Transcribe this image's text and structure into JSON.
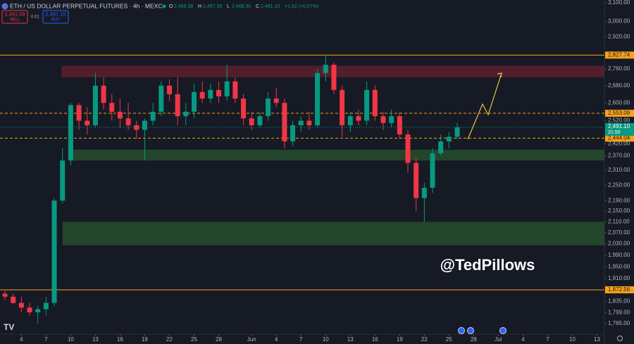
{
  "header": {
    "symbol": "ETH / US DOLLAR PERPETUAL FUTURES · 4h · MEXC",
    "ohlc": [
      {
        "key": "O",
        "text": "2,489.38"
      },
      {
        "key": "H",
        "text": "2,497.39"
      },
      {
        "key": "L",
        "text": "2,468.30"
      },
      {
        "key": "C",
        "text": "2,491.10"
      }
    ],
    "change": "+1.62 (+0.07%)",
    "sell_price": "2,491.09",
    "sell": "SELL",
    "spread": "0.01",
    "buy_price": "2,491.10",
    "buy": "BUY"
  },
  "watermark": "@TedPillows",
  "chart_data": {
    "type": "candlestick",
    "y_scale": "log",
    "grid": false,
    "up_color": "#089981",
    "down_color": "#f23645",
    "x": [
      2,
      3,
      4,
      5,
      6,
      7,
      8,
      9,
      10,
      11,
      12,
      13,
      14,
      15,
      16,
      17,
      18,
      19,
      20,
      21,
      22,
      23,
      24,
      25,
      26,
      27,
      28,
      29,
      30,
      31,
      32,
      33,
      34,
      35,
      36,
      37,
      38,
      39,
      40,
      41,
      42,
      43,
      44,
      45,
      46,
      47,
      48,
      49,
      50,
      51,
      52,
      53,
      54,
      55,
      56,
      57
    ],
    "open": [
      1860,
      1850,
      1830,
      1815,
      1800,
      1810,
      1830,
      2190,
      2350,
      2590,
      2520,
      2500,
      2680,
      2600,
      2560,
      2530,
      2500,
      2480,
      2520,
      2560,
      2680,
      2640,
      2540,
      2560,
      2650,
      2620,
      2660,
      2630,
      2700,
      2620,
      2530,
      2500,
      2540,
      2620,
      2600,
      2430,
      2500,
      2520,
      2500,
      2740,
      2780,
      2660,
      2500,
      2540,
      2520,
      2660,
      2540,
      2510,
      2540,
      2460,
      2340,
      2200,
      2240,
      2380,
      2430,
      2450
    ],
    "high": [
      1870,
      1860,
      1850,
      1830,
      1820,
      1850,
      2200,
      2400,
      2600,
      2600,
      2580,
      2740,
      2720,
      2640,
      2620,
      2600,
      2520,
      2530,
      2600,
      2700,
      2710,
      2720,
      2600,
      2690,
      2700,
      2690,
      2700,
      2780,
      2720,
      2640,
      2560,
      2560,
      2650,
      2670,
      2620,
      2520,
      2540,
      2560,
      2760,
      2830,
      2790,
      2680,
      2560,
      2570,
      2700,
      2680,
      2560,
      2570,
      2560,
      2480,
      2360,
      2260,
      2400,
      2460,
      2470,
      2510
    ],
    "low": [
      1840,
      1825,
      1800,
      1790,
      1765,
      1790,
      1820,
      2180,
      2330,
      2480,
      2460,
      2490,
      2570,
      2520,
      2490,
      2480,
      2440,
      2350,
      2500,
      2540,
      2610,
      2500,
      2500,
      2530,
      2600,
      2600,
      2600,
      2610,
      2600,
      2500,
      2480,
      2490,
      2520,
      2580,
      2400,
      2410,
      2470,
      2480,
      2490,
      2700,
      2640,
      2450,
      2470,
      2500,
      2500,
      2520,
      2480,
      2490,
      2440,
      2300,
      2150,
      2110,
      2220,
      2370,
      2400,
      2440
    ],
    "close": [
      1850,
      1830,
      1815,
      1800,
      1810,
      1830,
      2190,
      2350,
      2590,
      2520,
      2500,
      2680,
      2600,
      2560,
      2530,
      2500,
      2480,
      2520,
      2560,
      2680,
      2640,
      2540,
      2560,
      2650,
      2620,
      2660,
      2630,
      2700,
      2620,
      2530,
      2500,
      2540,
      2620,
      2600,
      2430,
      2500,
      2520,
      2500,
      2740,
      2780,
      2660,
      2500,
      2540,
      2520,
      2660,
      2540,
      2510,
      2540,
      2460,
      2340,
      2200,
      2240,
      2380,
      2430,
      2450,
      2491.1
    ],
    "xlim": [
      1.4,
      74.9
    ],
    "xticks": [
      4,
      7,
      10,
      13,
      16,
      19,
      22,
      25,
      28,
      {
        "value": 32,
        "label": "Jun"
      },
      {
        "value": 35,
        "label": "4"
      },
      {
        "value": 38,
        "label": "7"
      },
      {
        "value": 41,
        "label": "10"
      },
      {
        "value": 44,
        "label": "13"
      },
      {
        "value": 47,
        "label": "16"
      },
      {
        "value": 50,
        "label": "19"
      },
      {
        "value": 53,
        "label": "22"
      },
      {
        "value": 56,
        "label": "25"
      },
      {
        "value": 59,
        "label": "28"
      },
      {
        "value": 62,
        "label": "Jul"
      },
      {
        "value": 65,
        "label": "4"
      },
      {
        "value": 68,
        "label": "7"
      },
      {
        "value": 71,
        "label": "10"
      },
      {
        "value": 74,
        "label": "13"
      }
    ],
    "ylim": [
      1743,
      3115
    ],
    "yticks": [
      {
        "value": 3100,
        "label": "3,100.00"
      },
      {
        "value": 3000,
        "label": "3,000.00"
      },
      {
        "value": 2920,
        "label": "2,920.00"
      },
      {
        "value": 2760,
        "label": "2,760.00"
      },
      {
        "value": 2680,
        "label": "2,680.00"
      },
      {
        "value": 2600,
        "label": "2,600.00"
      },
      {
        "value": 2520,
        "label": "2,520.00"
      },
      {
        "value": 2420,
        "label": "2,420.00"
      },
      {
        "value": 2370,
        "label": "2,370.00"
      },
      {
        "value": 2310,
        "label": "2,310.00"
      },
      {
        "value": 2250,
        "label": "2,250.00"
      },
      {
        "value": 2190,
        "label": "2,190.00"
      },
      {
        "value": 2150,
        "label": "2,150.00"
      },
      {
        "value": 2110,
        "label": "2,110.00"
      },
      {
        "value": 2070,
        "label": "2,070.00"
      },
      {
        "value": 2030,
        "label": "2,030.00"
      },
      {
        "value": 1990,
        "label": "1,990.00"
      },
      {
        "value": 1950,
        "label": "1,950.00"
      },
      {
        "value": 1910,
        "label": "1,910.00"
      },
      {
        "value": 1835,
        "label": "1,835.00"
      },
      {
        "value": 1799,
        "label": "1,799.00"
      },
      {
        "value": 1765,
        "label": "1,765.00"
      }
    ],
    "zones": [
      {
        "low": 2720,
        "high": 2775,
        "from": 8.9,
        "color": "#5a1f2e"
      },
      {
        "low": 2350,
        "high": 2395,
        "from": 10,
        "color": "#254a2e"
      },
      {
        "low": 2025,
        "high": 2110,
        "from": 9,
        "color": "#254a2e"
      }
    ],
    "levels": [
      {
        "value": 2827.74,
        "label": "2,827.74",
        "style": "solid"
      },
      {
        "value": 2553.09,
        "label": "2,553.09",
        "style": "dashed"
      },
      {
        "value": 2444.04,
        "label": "2,444.04",
        "style": "dashed"
      },
      {
        "value": 1872.56,
        "label": "1,872.56",
        "style": "solid"
      }
    ],
    "level_color": "#f7a21b",
    "last_price": {
      "value": 2491.1,
      "label": "2,491.10",
      "countdown": "21:50"
    }
  }
}
